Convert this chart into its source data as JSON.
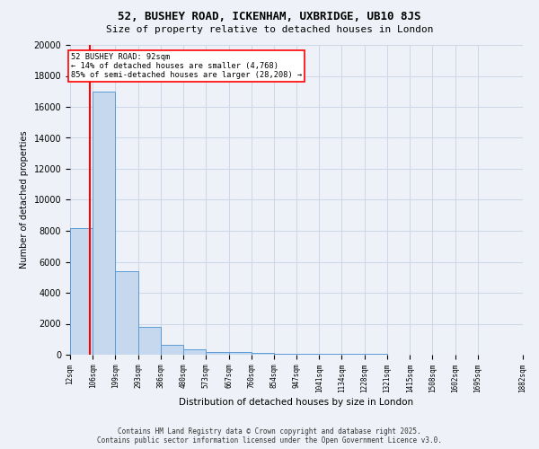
{
  "title1": "52, BUSHEY ROAD, ICKENHAM, UXBRIDGE, UB10 8JS",
  "title2": "Size of property relative to detached houses in London",
  "xlabel": "Distribution of detached houses by size in London",
  "ylabel": "Number of detached properties",
  "bar_heights": [
    8200,
    17000,
    5400,
    1800,
    650,
    330,
    200,
    150,
    100,
    80,
    60,
    50,
    40,
    30,
    25,
    20,
    15,
    10,
    5
  ],
  "bin_edges": [
    12,
    106,
    199,
    293,
    386,
    480,
    573,
    667,
    760,
    854,
    947,
    1041,
    1134,
    1228,
    1321,
    1415,
    1508,
    1602,
    1695,
    1882
  ],
  "x_labels": [
    "12sqm",
    "106sqm",
    "199sqm",
    "293sqm",
    "386sqm",
    "480sqm",
    "573sqm",
    "667sqm",
    "760sqm",
    "854sqm",
    "947sqm",
    "1041sqm",
    "1134sqm",
    "1228sqm",
    "1321sqm",
    "1415sqm",
    "1508sqm",
    "1602sqm",
    "1695sqm",
    "1882sqm"
  ],
  "property_size": 92,
  "bar_color": "#c5d8ee",
  "bar_edge_color": "#5b9bd5",
  "vline_color": "red",
  "annotation_text": "52 BUSHEY ROAD: 92sqm\n← 14% of detached houses are smaller (4,768)\n85% of semi-detached houses are larger (28,208) →",
  "annotation_box_color": "white",
  "annotation_box_edge": "red",
  "footer1": "Contains HM Land Registry data © Crown copyright and database right 2025.",
  "footer2": "Contains public sector information licensed under the Open Government Licence v3.0.",
  "ylim_max": 20000,
  "yticks": [
    0,
    2000,
    4000,
    6000,
    8000,
    10000,
    12000,
    14000,
    16000,
    18000,
    20000
  ],
  "background_color": "#eef2f8",
  "grid_color": "#d0d8e8"
}
